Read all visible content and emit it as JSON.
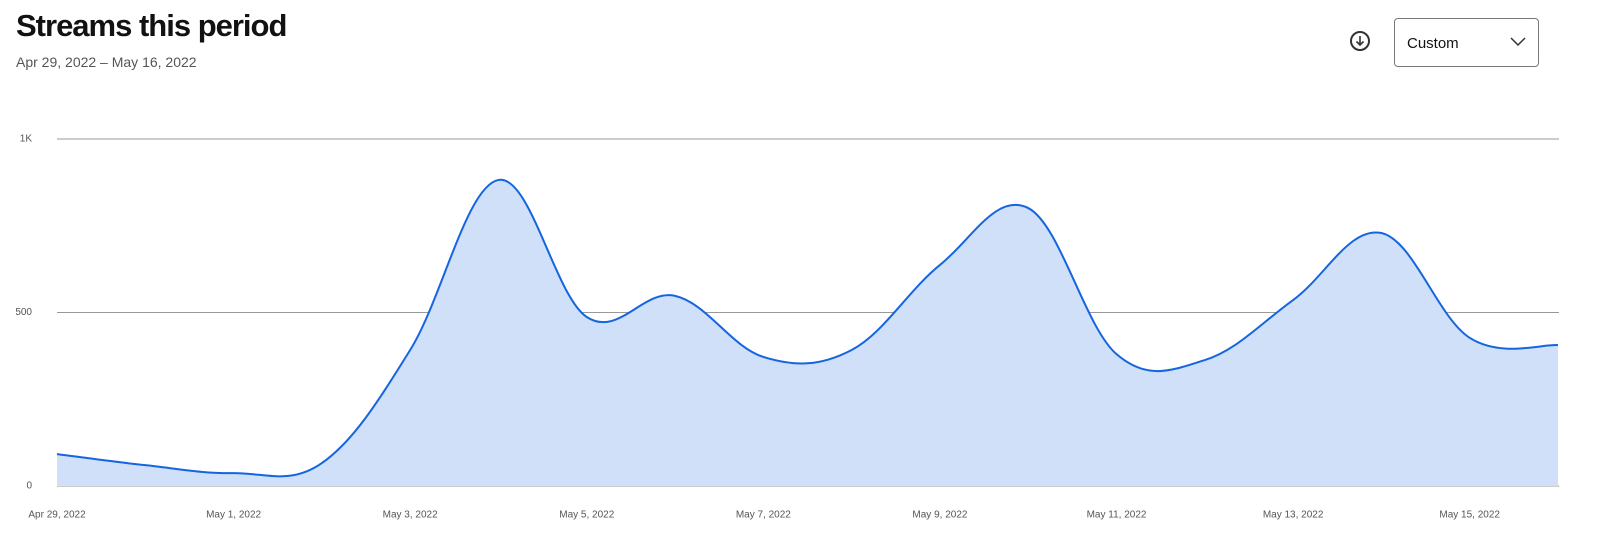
{
  "header": {
    "title": "Streams this period",
    "subtitle": "Apr 29, 2022 – May 16, 2022"
  },
  "controls": {
    "range_select": "Custom"
  },
  "chart_data": {
    "type": "area",
    "categories": [
      "Apr 29, 2022",
      null,
      "May 1, 2022",
      null,
      "May 3, 2022",
      null,
      "May 5, 2022",
      null,
      "May 7, 2022",
      null,
      "May 9, 2022",
      null,
      "May 11, 2022",
      null,
      "May 13, 2022",
      null,
      "May 15, 2022",
      null
    ],
    "values": [
      92,
      60,
      37,
      66,
      392,
      882,
      487,
      548,
      372,
      392,
      637,
      801,
      380,
      363,
      536,
      729,
      427,
      406
    ],
    "color": "#1565e0",
    "fill": "#cfe0f8",
    "ylim": [
      0,
      1000
    ],
    "yticks": [
      0,
      500,
      {
        "value": 1000,
        "label": "1K"
      }
    ],
    "grid": true
  }
}
